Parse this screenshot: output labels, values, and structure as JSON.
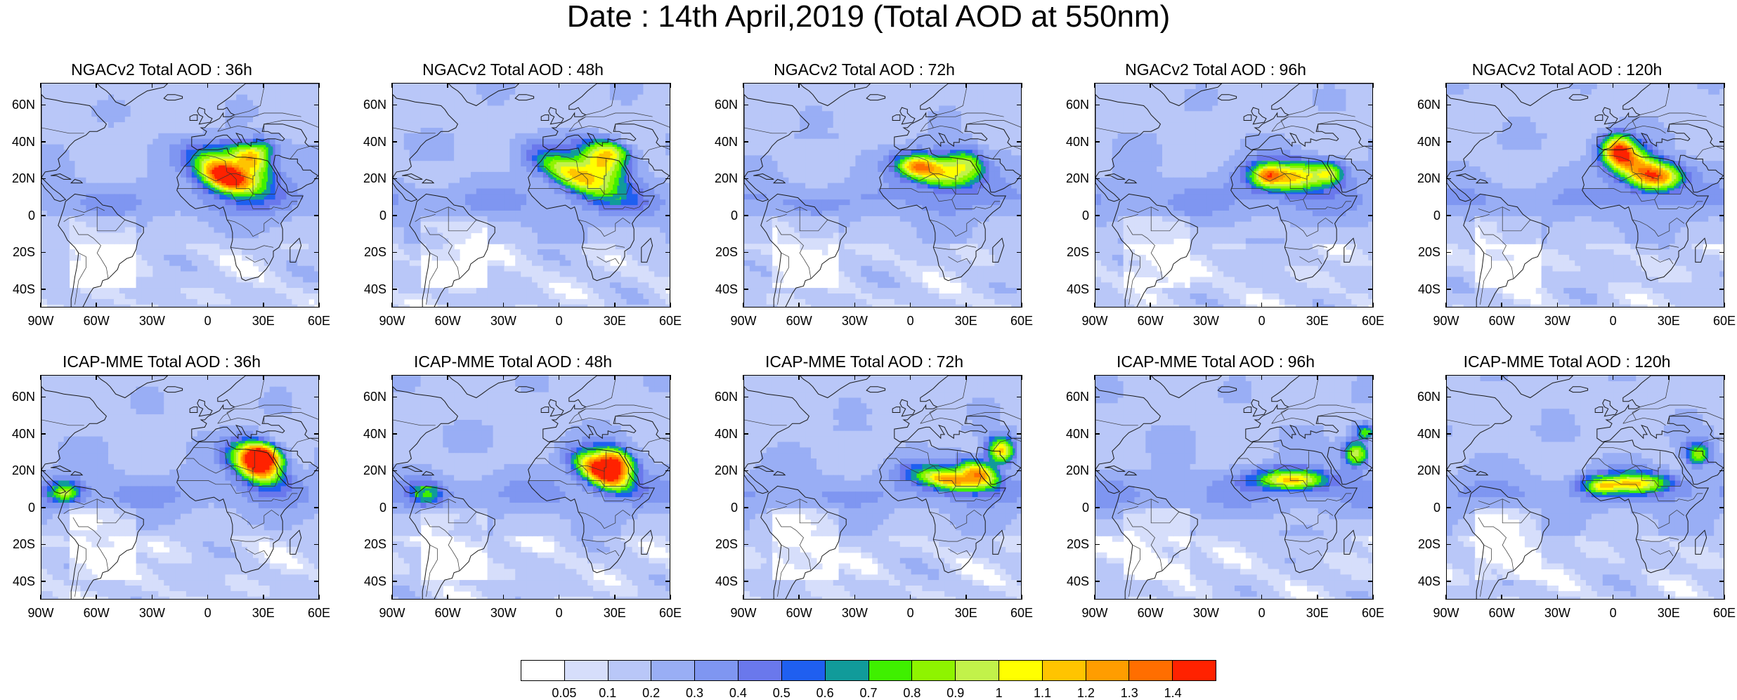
{
  "title": "Date : 14th April,2019 (Total AOD at 550nm)",
  "panels": [
    {
      "label": "NGACv2 Total AOD : 36h",
      "row": 0,
      "col": 0
    },
    {
      "label": "NGACv2 Total AOD : 48h",
      "row": 0,
      "col": 1
    },
    {
      "label": "NGACv2 Total AOD : 72h",
      "row": 0,
      "col": 2
    },
    {
      "label": "NGACv2 Total AOD : 96h",
      "row": 0,
      "col": 3
    },
    {
      "label": "NGACv2 Total AOD : 120h",
      "row": 0,
      "col": 4
    },
    {
      "label": "ICAP-MME Total AOD : 36h",
      "row": 1,
      "col": 0
    },
    {
      "label": "ICAP-MME Total AOD : 48h",
      "row": 1,
      "col": 1
    },
    {
      "label": "ICAP-MME Total AOD : 72h",
      "row": 1,
      "col": 2
    },
    {
      "label": "ICAP-MME Total AOD : 96h",
      "row": 1,
      "col": 3
    },
    {
      "label": "ICAP-MME Total AOD : 120h",
      "row": 1,
      "col": 4
    }
  ],
  "axes": {
    "lon_ticks": [
      "90W",
      "60W",
      "30W",
      "0",
      "30E",
      "60E"
    ],
    "lon_values": [
      -90,
      -60,
      -30,
      0,
      30,
      60
    ],
    "lat_ticks": [
      "60N",
      "40N",
      "20N",
      "0",
      "20S",
      "40S"
    ],
    "lat_values": [
      60,
      40,
      20,
      0,
      -20,
      -40
    ],
    "lon_range": [
      -90,
      60
    ],
    "lat_range": [
      -50,
      72
    ]
  },
  "colorbar": {
    "labels": [
      "0.05",
      "0.1",
      "0.2",
      "0.3",
      "0.4",
      "0.5",
      "0.6",
      "0.7",
      "0.8",
      "0.9",
      "1",
      "1.1",
      "1.2",
      "1.3",
      "1.4"
    ],
    "colors": [
      "#ffffff",
      "#d6defb",
      "#b9c7f8",
      "#99aef5",
      "#7f96f1",
      "#6a78ec",
      "#1f5ff0",
      "#119b9a",
      "#3ff000",
      "#8ef400",
      "#c2f24a",
      "#ffff00",
      "#ffc400",
      "#ff9d00",
      "#ff6e00",
      "#ff2200"
    ]
  },
  "plumes": [
    [
      [
        12,
        24,
        16,
        7,
        0.9,
        -25
      ],
      [
        8,
        21,
        9,
        5,
        0.7,
        -20
      ],
      [
        22,
        32,
        9,
        4,
        0.6,
        -30
      ],
      [
        28,
        37,
        6,
        4,
        0.5,
        0
      ]
    ],
    [
      [
        10,
        22,
        18,
        6,
        0.9,
        -25
      ],
      [
        22,
        30,
        10,
        5,
        0.7,
        -30
      ],
      [
        28,
        36,
        8,
        4,
        0.6,
        -20
      ]
    ],
    [
      [
        15,
        24,
        14,
        6,
        0.8,
        -10
      ],
      [
        2,
        28,
        7,
        4,
        0.6,
        0
      ],
      [
        30,
        30,
        8,
        5,
        0.5,
        -20
      ]
    ],
    [
      [
        15,
        22,
        16,
        6,
        0.9,
        0
      ],
      [
        2,
        23,
        5,
        4,
        0.5,
        0
      ],
      [
        36,
        24,
        5,
        4,
        0.4,
        0
      ]
    ],
    [
      [
        2,
        36,
        6,
        6,
        0.9,
        0
      ],
      [
        12,
        28,
        12,
        7,
        0.8,
        -30
      ],
      [
        25,
        22,
        10,
        5,
        0.7,
        0
      ]
    ],
    [
      [
        25,
        24,
        10,
        6,
        1.3,
        -30
      ],
      [
        30,
        30,
        7,
        4,
        0.9,
        -20
      ],
      [
        -78,
        9,
        6,
        4,
        0.7,
        0
      ]
    ],
    [
      [
        22,
        20,
        11,
        5,
        1.3,
        -30
      ],
      [
        30,
        26,
        8,
        5,
        1.0,
        -30
      ],
      [
        -72,
        8,
        6,
        4,
        0.5,
        0
      ]
    ],
    [
      [
        20,
        16,
        14,
        4,
        1.0,
        -10
      ],
      [
        36,
        20,
        8,
        4,
        0.9,
        -20
      ],
      [
        48,
        32,
        5,
        5,
        0.9,
        0
      ]
    ],
    [
      [
        15,
        16,
        14,
        4,
        0.9,
        0
      ],
      [
        50,
        30,
        5,
        5,
        0.7,
        0
      ],
      [
        55,
        42,
        4,
        3,
        0.5,
        0
      ]
    ],
    [
      [
        10,
        14,
        14,
        4,
        0.9,
        0
      ],
      [
        45,
        30,
        5,
        5,
        0.6,
        0
      ],
      [
        -8,
        12,
        6,
        3,
        0.5,
        0
      ]
    ]
  ]
}
